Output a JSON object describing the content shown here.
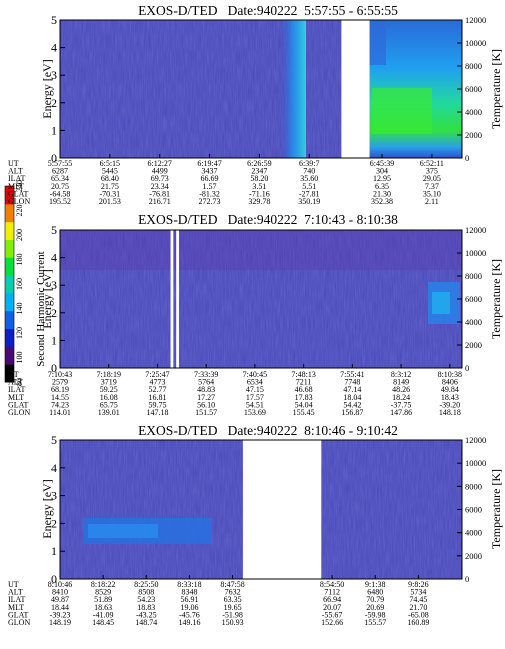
{
  "chart_data": [
    {
      "type": "heatmap",
      "title": "EXOS-D/TED   Date:940222  5:57:55 - 6:55:55",
      "ylabel": "Energy [eV]",
      "y2label": "Temperature [K]",
      "ylim": [
        0,
        5
      ],
      "y_ticks": [
        "0",
        "1",
        "2",
        "3",
        "4",
        "5"
      ],
      "y2lim": [
        0,
        12000
      ],
      "y2_ticks": [
        "0",
        "2000",
        "4000",
        "6000",
        "8000",
        "10000",
        "12000"
      ],
      "data_gaps": [
        [
          0.7,
          0.77
        ]
      ],
      "orbit_table": {
        "row_labels": [
          "UT",
          "ALT",
          "ILAT",
          "MLT",
          "GLAT",
          "GLON"
        ],
        "columns": [
          [
            "5:57:55",
            "6287",
            "65.34",
            "20.75",
            "-64.58",
            "195.52"
          ],
          [
            "6:5:15",
            "5445",
            "68.40",
            "21.75",
            "-70.31",
            "201.53"
          ],
          [
            "6:12:27",
            "4499",
            "69.73",
            "23.34",
            "-76.81",
            "216.71"
          ],
          [
            "6:19:47",
            "3437",
            "66.69",
            "1.57",
            "-81.32",
            "272.73"
          ],
          [
            "6:26:59",
            "2347",
            "58.20",
            "3.51",
            "-71.16",
            "329.78"
          ],
          [
            "6:39:7",
            "740",
            "35.60",
            "5.51",
            "-27.81",
            "350.19"
          ],
          [
            "6:45:39",
            "304",
            "12.95",
            "6.35",
            "21.30",
            "352.38"
          ],
          [
            "6:52:11",
            "375",
            "29.05",
            "7.37",
            "35.10",
            "2.11"
          ]
        ]
      }
    },
    {
      "type": "heatmap",
      "title": "EXOS-D/TED   Date:940222  7:10:43 - 8:10:38",
      "ylabel": "Energy [eV]",
      "y2label": "Temperature [K]",
      "ylim": [
        0,
        5
      ],
      "y_ticks": [
        "0",
        "1",
        "2",
        "3",
        "4",
        "5"
      ],
      "y2lim": [
        0,
        12000
      ],
      "y2_ticks": [
        "0",
        "2000",
        "4000",
        "6000",
        "8000",
        "10000",
        "12000"
      ],
      "data_gaps": [
        [
          0.275,
          0.282
        ],
        [
          0.289,
          0.296
        ]
      ],
      "orbit_table": {
        "row_labels": [
          "UT",
          "ALT",
          "ILAT",
          "MLT",
          "GLAT",
          "GLON"
        ],
        "columns": [
          [
            "7:10:43",
            "2579",
            "68.19",
            "14.55",
            "74.23",
            "114.01"
          ],
          [
            "7:18:19",
            "3719",
            "59.25",
            "16.08",
            "65.75",
            "139.01"
          ],
          [
            "7:25:47",
            "4773",
            "52.77",
            "16.81",
            "59.75",
            "147.18"
          ],
          [
            "7:33:39",
            "5764",
            "48.83",
            "17.27",
            "56.10",
            "151.57"
          ],
          [
            "7:40:45",
            "6534",
            "47.15",
            "17.57",
            "54.51",
            "153.69"
          ],
          [
            "7:48:13",
            "7211",
            "46.68",
            "17.83",
            "54.04",
            "155.45"
          ],
          [
            "7:55:41",
            "7748",
            "47.14",
            "18.04",
            "54.42",
            "156.87"
          ],
          [
            "8:3:12",
            "8149",
            "48.26",
            "18.24",
            "-37.75",
            "147.86"
          ],
          [
            "8:10:38",
            "8406",
            "49.84",
            "18.43",
            "-39.20",
            "148.18"
          ]
        ]
      }
    },
    {
      "type": "heatmap",
      "title": "EXOS-D/TED   Date:940222  8:10:46 - 9:10:42",
      "ylabel": "Energy [eV]",
      "y2label": "Temperature [K]",
      "ylim": [
        0,
        5
      ],
      "y_ticks": [
        "0",
        "1",
        "2",
        "3",
        "4",
        "5"
      ],
      "y2lim": [
        0,
        12000
      ],
      "y2_ticks": [
        "0",
        "2000",
        "4000",
        "6000",
        "8000",
        "10000",
        "12000"
      ],
      "data_gaps": [
        [
          0.455,
          0.65
        ]
      ],
      "orbit_table": {
        "row_labels": [
          "UT",
          "ALT",
          "ILAT",
          "MLT",
          "GLAT",
          "GLON"
        ],
        "columns": [
          [
            "8:10:46",
            "8410",
            "49.87",
            "18.44",
            "-39.23",
            "148.19"
          ],
          [
            "8:18:22",
            "8529",
            "51.89",
            "18.63",
            "-41.09",
            "148.45"
          ],
          [
            "8:25:50",
            "8508",
            "54.23",
            "18.83",
            "-43.25",
            "148.74"
          ],
          [
            "8:33:18",
            "8348",
            "56.91",
            "19.06",
            "-45.76",
            "149.16"
          ],
          [
            "8:47:58",
            "7632",
            "63.35",
            "19.65",
            "-51.98",
            "150.93"
          ],
          [
            "8:54:50",
            "7112",
            "66.94",
            "20.07",
            "-55.67",
            "152.66"
          ],
          [
            "9:1:38",
            "6480",
            "70.79",
            "20.69",
            "-59.98",
            "155.57"
          ],
          [
            "9:8:26",
            "5734",
            "74.45",
            "21.70",
            "-65.08",
            "160.89"
          ]
        ]
      }
    }
  ],
  "colorbar": {
    "label": "Second Harmonic Current",
    "ticks": [
      "80",
      "100",
      "120",
      "140",
      "160",
      "180",
      "200",
      "220",
      "240"
    ],
    "colors": [
      "#000000",
      "#4a0a70",
      "#1020c0",
      "#1060e0",
      "#00b0f0",
      "#00d0b0",
      "#00e040",
      "#80f000",
      "#f0f000",
      "#f08000",
      "#e00000"
    ]
  },
  "colors": {
    "background_field": "#4646b8",
    "panel1_plasma": "#2d8ce8",
    "panel1_hot": "#30e040",
    "gap": "#ffffff"
  }
}
